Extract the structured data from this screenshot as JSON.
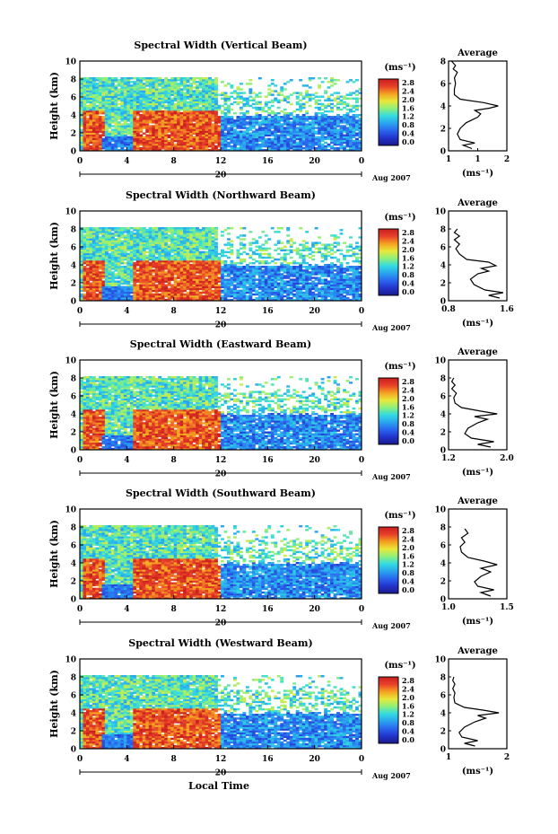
{
  "figure": {
    "background": "#ffffff",
    "x_axis_label": "Local Time",
    "colorbar_ticks": [
      "2.8",
      "2.4",
      "2.0",
      "1.6",
      "1.2",
      "0.8",
      "0.4",
      "0.0"
    ],
    "colorbar_unit": "(ms⁻¹)",
    "colormap": [
      "#1b1b8a",
      "#2233cc",
      "#2a66ee",
      "#29a4f0",
      "#33dbe0",
      "#8df07a",
      "#e8e83a",
      "#f5a020",
      "#e8402a",
      "#c81e1e"
    ]
  },
  "chart_data": [
    {
      "type": "heatmap",
      "title": "Spectral Width (Vertical Beam)",
      "ylabel": "Height (km)",
      "xlabel": "Local Time",
      "x_ticks": [
        "0",
        "4",
        "8",
        "12",
        "16",
        "20",
        "0"
      ],
      "date_label": "20",
      "month_label": "Aug 2007",
      "xlim": [
        0,
        24
      ],
      "ylim": [
        0,
        10
      ],
      "y_ticks": [
        "10",
        "8",
        "6",
        "4",
        "2",
        "0"
      ],
      "zlim": [
        0.0,
        2.8
      ],
      "colorbar_unit": "(ms⁻¹)",
      "profile": {
        "title": "Average",
        "xlabel": "(ms⁻¹)",
        "x_ticks": [
          "1",
          "1",
          "2"
        ],
        "xlim": [
          1,
          2
        ],
        "ylim": [
          0,
          8
        ],
        "y_ticks": [
          "8",
          "6",
          "4",
          "2",
          "0"
        ],
        "points": [
          [
            1.4,
            0.2
          ],
          [
            1.25,
            0.5
          ],
          [
            1.45,
            0.7
          ],
          [
            1.2,
            1.0
          ],
          [
            1.15,
            1.5
          ],
          [
            1.2,
            2.0
          ],
          [
            1.3,
            2.5
          ],
          [
            1.5,
            3.0
          ],
          [
            1.55,
            3.3
          ],
          [
            1.45,
            3.6
          ],
          [
            1.7,
            3.8
          ],
          [
            1.85,
            4.0
          ],
          [
            1.6,
            4.3
          ],
          [
            1.2,
            4.6
          ],
          [
            1.1,
            5.0
          ],
          [
            1.1,
            5.5
          ],
          [
            1.12,
            6.0
          ],
          [
            1.1,
            6.5
          ],
          [
            1.15,
            7.0
          ],
          [
            1.08,
            7.3
          ],
          [
            1.12,
            7.6
          ],
          [
            1.05,
            8.0
          ]
        ]
      }
    },
    {
      "type": "heatmap",
      "title": "Spectral Width (Northward Beam)",
      "ylabel": "Height (km)",
      "xlabel": "Local Time",
      "x_ticks": [
        "0",
        "4",
        "8",
        "12",
        "16",
        "20",
        "0"
      ],
      "date_label": "20",
      "month_label": "Aug 2007",
      "xlim": [
        0,
        24
      ],
      "ylim": [
        0,
        10
      ],
      "y_ticks": [
        "10",
        "8",
        "6",
        "4",
        "2",
        "0"
      ],
      "zlim": [
        0.0,
        2.8
      ],
      "colorbar_unit": "(ms⁻¹)",
      "profile": {
        "title": "Average",
        "xlabel": "(ms⁻¹)",
        "x_ticks": [
          "0.8",
          "1.6"
        ],
        "xlim": [
          0.8,
          1.6
        ],
        "ylim": [
          0,
          10
        ],
        "y_ticks": [
          "10",
          "8",
          "6",
          "4",
          "2",
          "0"
        ],
        "points": [
          [
            1.5,
            0.3
          ],
          [
            1.35,
            0.6
          ],
          [
            1.55,
            0.9
          ],
          [
            1.3,
            1.2
          ],
          [
            1.15,
            1.8
          ],
          [
            1.1,
            2.4
          ],
          [
            1.2,
            3.0
          ],
          [
            1.35,
            3.3
          ],
          [
            1.25,
            3.6
          ],
          [
            1.45,
            3.9
          ],
          [
            1.35,
            4.3
          ],
          [
            1.05,
            4.6
          ],
          [
            0.95,
            5.2
          ],
          [
            0.9,
            5.8
          ],
          [
            0.95,
            6.3
          ],
          [
            0.88,
            6.8
          ],
          [
            0.95,
            7.2
          ],
          [
            0.88,
            7.6
          ],
          [
            0.92,
            8.0
          ]
        ]
      }
    },
    {
      "type": "heatmap",
      "title": "Spectral Width (Eastward Beam)",
      "ylabel": "Height (km)",
      "xlabel": "Local Time",
      "x_ticks": [
        "0",
        "4",
        "8",
        "12",
        "16",
        "20",
        "0"
      ],
      "date_label": "20",
      "month_label": "Aug 2007",
      "xlim": [
        0,
        24
      ],
      "ylim": [
        0,
        10
      ],
      "y_ticks": [
        "10",
        "8",
        "6",
        "4",
        "2",
        "0"
      ],
      "zlim": [
        0.0,
        2.8
      ],
      "colorbar_unit": "(ms⁻¹)",
      "profile": {
        "title": "Average",
        "xlabel": "(ms⁻¹)",
        "x_ticks": [
          "1.2",
          "2.0"
        ],
        "xlim": [
          1.1,
          2.0
        ],
        "ylim": [
          0,
          10
        ],
        "y_ticks": [
          "10",
          "8",
          "6",
          "4",
          "2",
          "0"
        ],
        "points": [
          [
            1.75,
            0.3
          ],
          [
            1.55,
            0.6
          ],
          [
            1.8,
            0.9
          ],
          [
            1.45,
            1.3
          ],
          [
            1.35,
            1.8
          ],
          [
            1.4,
            2.4
          ],
          [
            1.55,
            3.0
          ],
          [
            1.7,
            3.4
          ],
          [
            1.5,
            3.7
          ],
          [
            1.85,
            4.0
          ],
          [
            1.6,
            4.3
          ],
          [
            1.3,
            4.7
          ],
          [
            1.2,
            5.2
          ],
          [
            1.18,
            5.8
          ],
          [
            1.22,
            6.3
          ],
          [
            1.15,
            6.8
          ],
          [
            1.2,
            7.2
          ],
          [
            1.15,
            7.6
          ],
          [
            1.18,
            8.0
          ]
        ]
      }
    },
    {
      "type": "heatmap",
      "title": "Spectral Width (Southward Beam)",
      "ylabel": "Height (km)",
      "xlabel": "Local Time",
      "x_ticks": [
        "0",
        "4",
        "8",
        "12",
        "16",
        "20",
        "0"
      ],
      "date_label": "20",
      "month_label": "Aug 2007",
      "xlim": [
        0,
        24
      ],
      "ylim": [
        0,
        10
      ],
      "y_ticks": [
        "10",
        "8",
        "6",
        "4",
        "2",
        "0"
      ],
      "zlim": [
        0.0,
        2.8
      ],
      "colorbar_unit": "(ms⁻¹)",
      "profile": {
        "title": "Average",
        "xlabel": "(ms⁻¹)",
        "x_ticks": [
          "1.0",
          "1.5"
        ],
        "xlim": [
          0.8,
          1.7
        ],
        "ylim": [
          0,
          10
        ],
        "y_ticks": [
          "10",
          "8",
          "6",
          "4",
          "2",
          "0"
        ],
        "points": [
          [
            1.45,
            0.3
          ],
          [
            1.3,
            0.7
          ],
          [
            1.5,
            1.0
          ],
          [
            1.25,
            1.4
          ],
          [
            1.2,
            1.9
          ],
          [
            1.3,
            2.5
          ],
          [
            1.45,
            3.0
          ],
          [
            1.3,
            3.4
          ],
          [
            1.55,
            3.8
          ],
          [
            1.35,
            4.2
          ],
          [
            1.1,
            4.6
          ],
          [
            1.0,
            5.2
          ],
          [
            0.98,
            5.8
          ],
          [
            1.05,
            6.3
          ],
          [
            1.0,
            6.8
          ],
          [
            1.1,
            7.3
          ],
          [
            1.05,
            7.8
          ]
        ]
      }
    },
    {
      "type": "heatmap",
      "title": "Spectral Width (Westward Beam)",
      "ylabel": "Height (km)",
      "xlabel": "Local Time",
      "x_ticks": [
        "0",
        "4",
        "8",
        "12",
        "16",
        "20",
        "0"
      ],
      "date_label": "20",
      "month_label": "Aug 2007",
      "xlim": [
        0,
        24
      ],
      "ylim": [
        0,
        10
      ],
      "y_ticks": [
        "10",
        "8",
        "6",
        "4",
        "2",
        "0"
      ],
      "zlim": [
        0.0,
        2.8
      ],
      "colorbar_unit": "(ms⁻¹)",
      "profile": {
        "title": "Average",
        "xlabel": "(ms⁻¹)",
        "x_ticks": [
          "1",
          "2"
        ],
        "xlim": [
          1,
          2.1
        ],
        "ylim": [
          0,
          10
        ],
        "y_ticks": [
          "10",
          "8",
          "6",
          "4",
          "2",
          "0"
        ],
        "points": [
          [
            1.5,
            0.3
          ],
          [
            1.3,
            0.6
          ],
          [
            1.55,
            0.9
          ],
          [
            1.25,
            1.3
          ],
          [
            1.2,
            1.8
          ],
          [
            1.3,
            2.4
          ],
          [
            1.5,
            3.0
          ],
          [
            1.7,
            3.4
          ],
          [
            1.55,
            3.7
          ],
          [
            1.95,
            4.0
          ],
          [
            1.65,
            4.3
          ],
          [
            1.3,
            4.6
          ],
          [
            1.12,
            5.1
          ],
          [
            1.1,
            5.7
          ],
          [
            1.12,
            6.2
          ],
          [
            1.08,
            6.7
          ],
          [
            1.12,
            7.2
          ],
          [
            1.08,
            7.6
          ],
          [
            1.1,
            8.0
          ]
        ]
      }
    }
  ]
}
